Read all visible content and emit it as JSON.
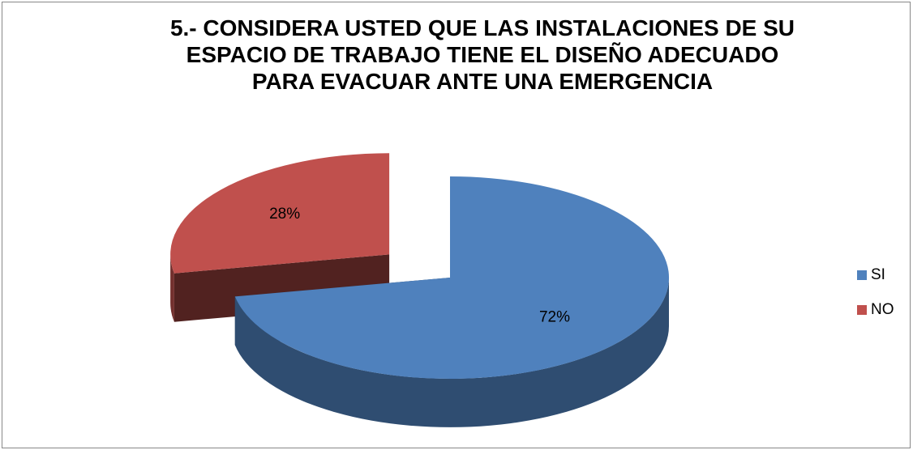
{
  "chart_data": {
    "type": "pie3d",
    "title": "5.- CONSIDERA USTED QUE LAS INSTALACIONES DE SU\nESPACIO DE TRABAJO TIENE EL DISEÑO ADECUADO\nPARA EVACUAR ANTE UNA EMERGENCIA",
    "categories": [
      "SI",
      "NO"
    ],
    "values": [
      72,
      28
    ],
    "value_labels": [
      "72%",
      "28%"
    ],
    "colors": [
      "#4f81bd",
      "#c0504d"
    ],
    "legend": "right"
  }
}
